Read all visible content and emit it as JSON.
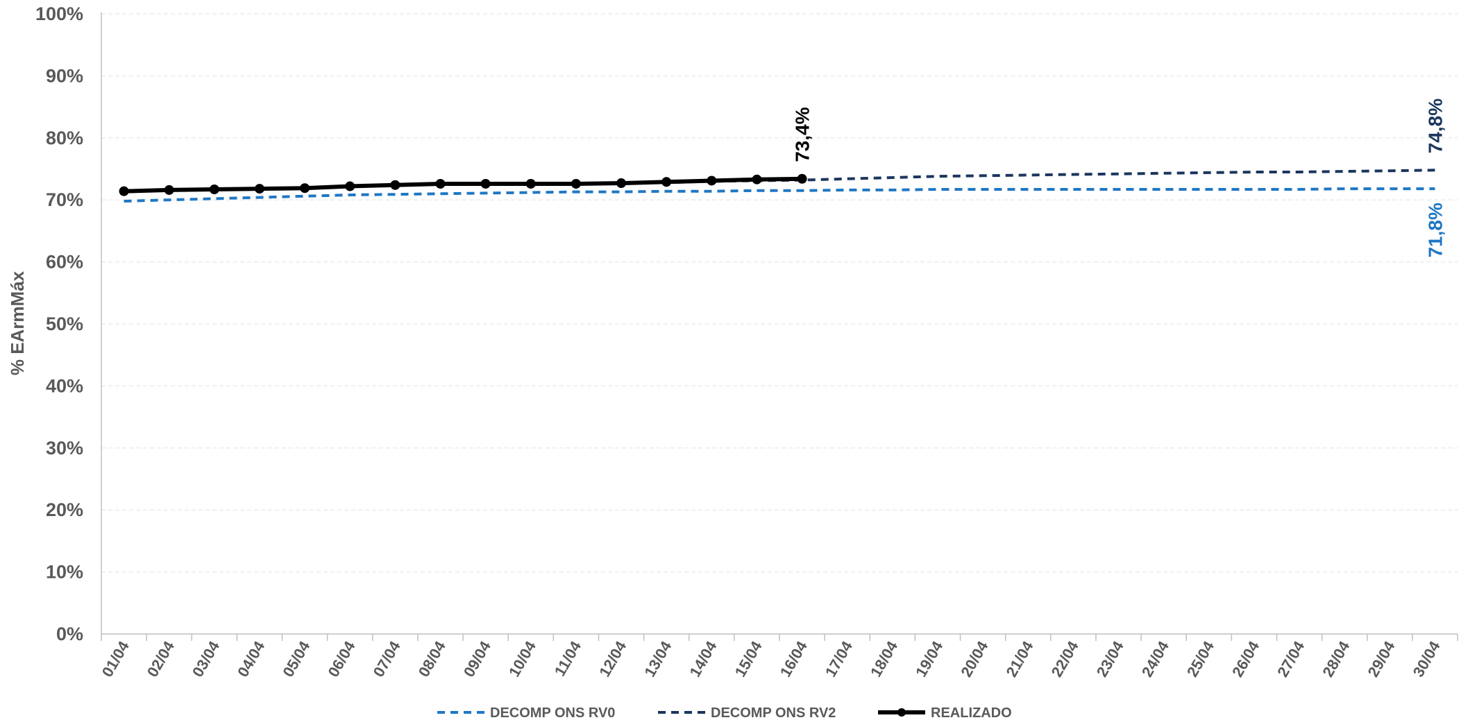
{
  "chart_data": {
    "type": "line",
    "ylabel": "% EArmMáx",
    "xlabel": "",
    "ylim": [
      0,
      100
    ],
    "y_ticks": [
      "0%",
      "10%",
      "20%",
      "30%",
      "40%",
      "50%",
      "60%",
      "70%",
      "80%",
      "90%",
      "100%"
    ],
    "grid": true,
    "legend_position": "bottom",
    "categories": [
      "01/04",
      "02/04",
      "03/04",
      "04/04",
      "05/04",
      "06/04",
      "07/04",
      "08/04",
      "09/04",
      "10/04",
      "11/04",
      "12/04",
      "13/04",
      "14/04",
      "15/04",
      "16/04",
      "17/04",
      "18/04",
      "19/04",
      "20/04",
      "21/04",
      "22/04",
      "23/04",
      "24/04",
      "25/04",
      "26/04",
      "27/04",
      "28/04",
      "29/04",
      "30/04"
    ],
    "series": [
      {
        "name": "DECOMP ONS RV0",
        "color": "#1f77c4",
        "style": "dashed",
        "values": [
          69.8,
          70.0,
          70.2,
          70.4,
          70.6,
          70.8,
          70.9,
          71.0,
          71.1,
          71.2,
          71.3,
          71.3,
          71.4,
          71.4,
          71.5,
          71.5,
          71.6,
          71.6,
          71.7,
          71.7,
          71.7,
          71.7,
          71.7,
          71.7,
          71.7,
          71.7,
          71.7,
          71.8,
          71.8,
          71.8
        ],
        "end_label": "71,8%"
      },
      {
        "name": "DECOMP ONS RV2",
        "color": "#1b365d",
        "style": "dashed",
        "values": [
          null,
          null,
          null,
          null,
          null,
          null,
          null,
          null,
          null,
          72.6,
          72.6,
          72.7,
          72.8,
          73.0,
          73.1,
          73.2,
          73.4,
          73.6,
          73.8,
          73.9,
          74.0,
          74.1,
          74.2,
          74.3,
          74.4,
          74.5,
          74.5,
          74.6,
          74.7,
          74.8
        ],
        "end_label": "74,8%"
      },
      {
        "name": "REALIZADO",
        "color": "#000000",
        "style": "solid-markers",
        "values": [
          71.4,
          71.6,
          71.7,
          71.8,
          71.9,
          72.2,
          72.4,
          72.6,
          72.6,
          72.6,
          72.6,
          72.7,
          72.9,
          73.1,
          73.3,
          73.4,
          null,
          null,
          null,
          null,
          null,
          null,
          null,
          null,
          null,
          null,
          null,
          null,
          null,
          null
        ],
        "end_label": "73,4%"
      }
    ]
  }
}
